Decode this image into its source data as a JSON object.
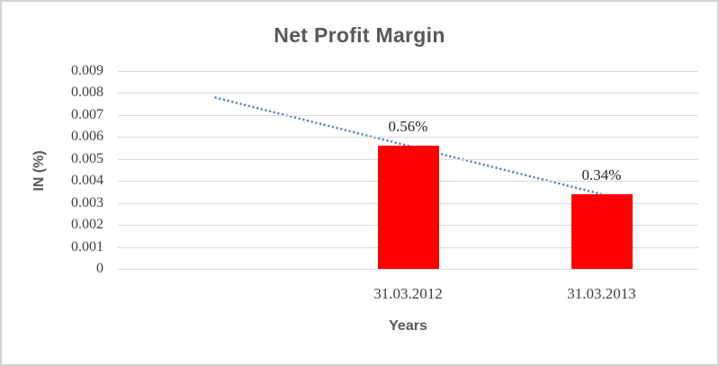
{
  "chart_data": {
    "type": "bar",
    "title": "Net Profit Margin",
    "xlabel": "Years",
    "ylabel": "IN (%)",
    "categories": [
      "31.03.2012",
      "31.03.2013"
    ],
    "values": [
      0.0056,
      0.0034
    ],
    "data_labels": [
      "0.56%",
      "0.34%"
    ],
    "y_ticks": [
      "0.009",
      "0.008",
      "0.007",
      "0.006",
      "0.005",
      "0.004",
      "0.003",
      "0.002",
      "0.001",
      "0"
    ],
    "ylim": [
      0,
      0.009
    ],
    "n_slots": 3,
    "category_slots": [
      2,
      3
    ],
    "grid": true,
    "legend": false,
    "trendline": {
      "shape": "linear",
      "line_style": "dotted",
      "points": [
        {
          "slot": 1,
          "value": 0.0078
        },
        {
          "slot": 3,
          "value": 0.0034
        }
      ]
    },
    "colors": {
      "bar": "#ff0000",
      "trendline": "#4f81bd",
      "gridline": "#d9d9d9",
      "title": "#595959",
      "axis_title": "#595959",
      "tick_label": "#3f3f3f",
      "data_label": "#262626",
      "border": "#d2d2d2",
      "background": "#ffffff"
    }
  }
}
